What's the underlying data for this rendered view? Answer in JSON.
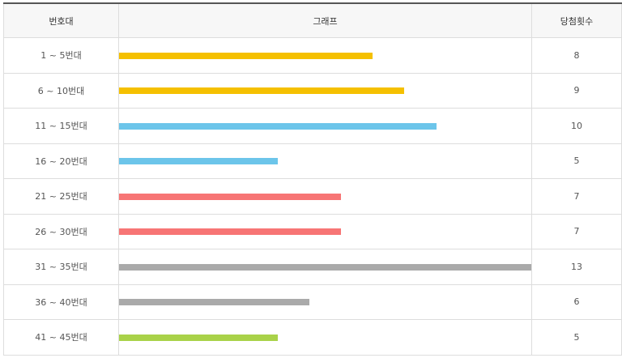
{
  "table": {
    "headers": [
      "번호대",
      "그래프",
      "당첨횟수"
    ],
    "rows": [
      {
        "label": "1 ~ 5번대",
        "count": 8,
        "color": "#f5c000"
      },
      {
        "label": "6 ~ 10번대",
        "count": 9,
        "color": "#f5c000"
      },
      {
        "label": "11 ~ 15번대",
        "count": 10,
        "color": "#6cc5ea"
      },
      {
        "label": "16 ~ 20번대",
        "count": 5,
        "color": "#6cc5ea"
      },
      {
        "label": "21 ~ 25번대",
        "count": 7,
        "color": "#f77575"
      },
      {
        "label": "26 ~ 30번대",
        "count": 7,
        "color": "#f77575"
      },
      {
        "label": "31 ~ 35번대",
        "count": 13,
        "color": "#aaaaaa"
      },
      {
        "label": "36 ~ 40번대",
        "count": 6,
        "color": "#aaaaaa"
      },
      {
        "label": "41 ~ 45번대",
        "count": 5,
        "color": "#a9d249"
      }
    ]
  }
}
